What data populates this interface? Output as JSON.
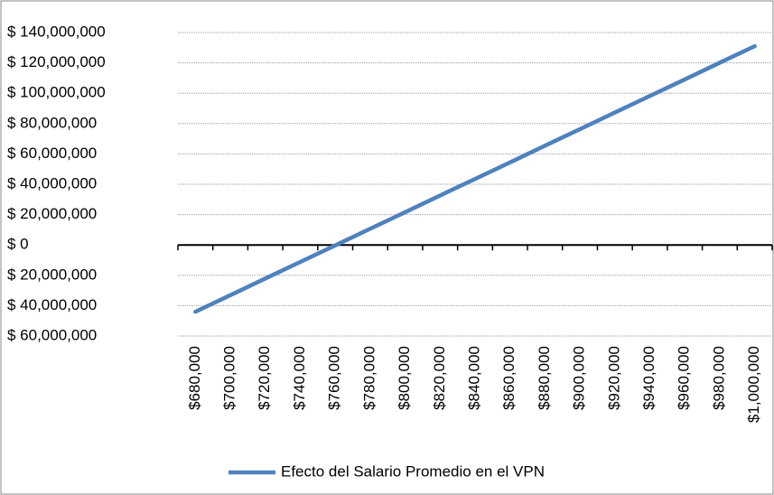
{
  "chart_data": {
    "type": "line",
    "categories": [
      "$680,000",
      "$700,000",
      "$720,000",
      "$740,000",
      "$760,000",
      "$780,000",
      "$800,000",
      "$820,000",
      "$840,000",
      "$860,000",
      "$880,000",
      "$900,000",
      "$920,000",
      "$940,000",
      "$960,000",
      "$980,000",
      "$1,000,000"
    ],
    "series": [
      {
        "name": "Efecto del Salario Promedio en el VPN",
        "color": "#4f81bd",
        "values": [
          -44000000,
          -33100000,
          -22100000,
          -11200000,
          -300000,
          10700000,
          21600000,
          32600000,
          43500000,
          54400000,
          65400000,
          76300000,
          87300000,
          98200000,
          109100000,
          120100000,
          131000000
        ]
      }
    ],
    "ylim": [
      -60000000,
      140000000
    ],
    "yticks": [
      {
        "value": -60000000,
        "label": "$ 60,000,000"
      },
      {
        "value": -40000000,
        "label": "$ 40,000,000"
      },
      {
        "value": -20000000,
        "label": "$ 20,000,000"
      },
      {
        "value": 0,
        "label": "$ 0"
      },
      {
        "value": 20000000,
        "label": "$ 20,000,000"
      },
      {
        "value": 40000000,
        "label": "$ 40,000,000"
      },
      {
        "value": 60000000,
        "label": "$ 60,000,000"
      },
      {
        "value": 80000000,
        "label": "$ 80,000,000"
      },
      {
        "value": 100000000,
        "label": "$ 100,000,000"
      },
      {
        "value": 120000000,
        "label": "$ 120,000,000"
      },
      {
        "value": 140000000,
        "label": "$ 140,000,000"
      }
    ],
    "negative_tick_color": "#ff0000",
    "grid": true,
    "legend": "bottom"
  }
}
